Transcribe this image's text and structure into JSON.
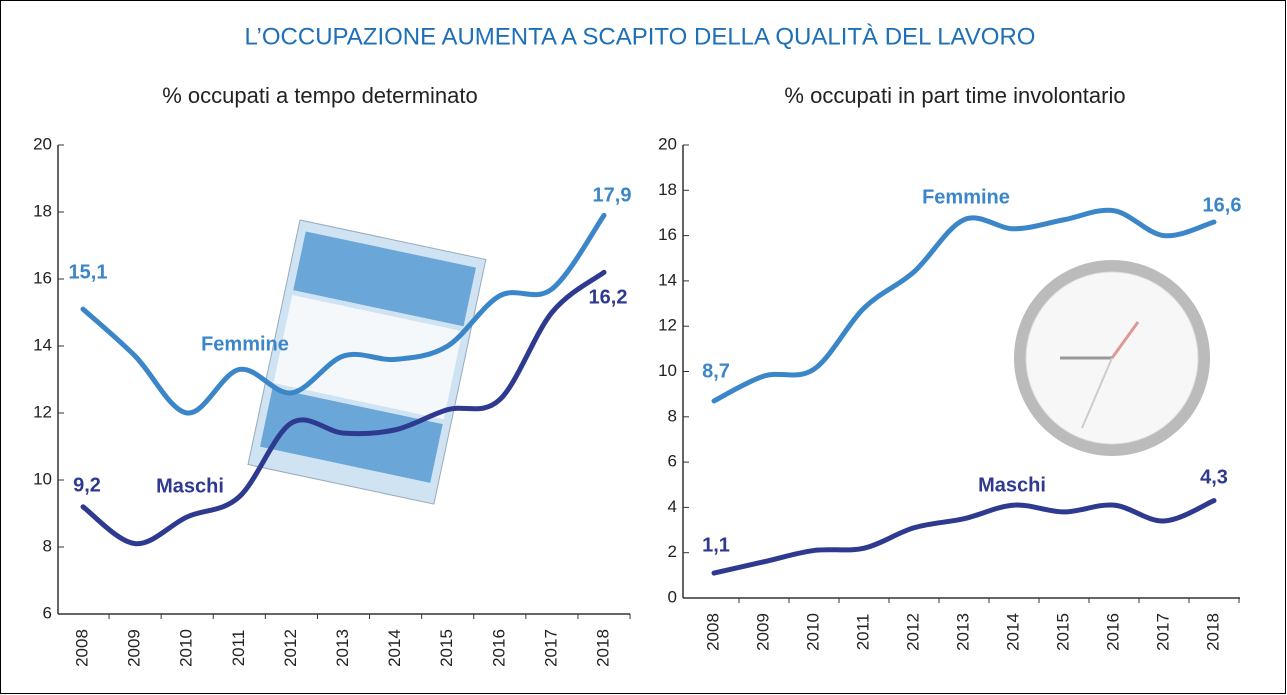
{
  "title": "L’OCCUPAZIONE AUMENTA A SCAPITO DELLA QUALITÀ DEL LAVORO",
  "chart_data": [
    {
      "type": "line",
      "title": "% occupati a tempo determinato",
      "categories": [
        "2008",
        "2009",
        "2010",
        "2011",
        "2012",
        "2013",
        "2014",
        "2015",
        "2016",
        "2017",
        "2018"
      ],
      "ylim": [
        6,
        20
      ],
      "yticks": [
        6,
        8,
        10,
        12,
        14,
        16,
        18,
        20
      ],
      "series": [
        {
          "name": "Femmine",
          "color": "#3a86c8",
          "values": [
            15.1,
            13.7,
            12.0,
            13.3,
            12.6,
            13.7,
            13.6,
            14.0,
            15.5,
            15.7,
            17.9
          ],
          "value_labels": [
            "15,1",
            null,
            null,
            null,
            null,
            null,
            null,
            null,
            null,
            null,
            "17,9"
          ]
        },
        {
          "name": "Maschi",
          "color": "#2e3a8f",
          "values": [
            9.2,
            8.1,
            8.9,
            9.5,
            11.7,
            11.4,
            11.5,
            12.1,
            12.4,
            15.0,
            16.2
          ],
          "value_labels": [
            "9,2",
            null,
            null,
            null,
            null,
            null,
            null,
            null,
            null,
            null,
            "16,2"
          ]
        }
      ]
    },
    {
      "type": "line",
      "title": "% occupati in part time involontario",
      "categories": [
        "2008",
        "2009",
        "2010",
        "2011",
        "2012",
        "2013",
        "2014",
        "2015",
        "2016",
        "2017",
        "2018"
      ],
      "ylim": [
        0,
        20
      ],
      "yticks": [
        0,
        2,
        4,
        6,
        8,
        10,
        12,
        14,
        16,
        18,
        20
      ],
      "series": [
        {
          "name": "Femmine",
          "color": "#3a86c8",
          "values": [
            8.7,
            9.8,
            10.1,
            12.8,
            14.4,
            16.7,
            16.3,
            16.7,
            17.1,
            16.0,
            16.6
          ],
          "value_labels": [
            "8,7",
            null,
            null,
            null,
            null,
            null,
            null,
            null,
            null,
            null,
            "16,6"
          ]
        },
        {
          "name": "Maschi",
          "color": "#2e3a8f",
          "values": [
            1.1,
            1.6,
            2.1,
            2.2,
            3.1,
            3.5,
            4.1,
            3.8,
            4.1,
            3.4,
            4.3
          ],
          "value_labels": [
            "1,1",
            null,
            null,
            null,
            null,
            null,
            null,
            null,
            null,
            null,
            "4,3"
          ]
        }
      ]
    }
  ]
}
